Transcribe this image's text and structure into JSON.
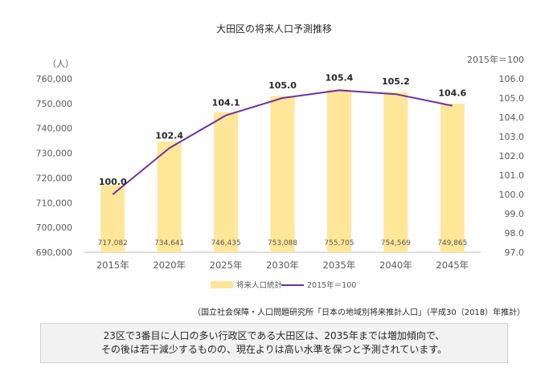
{
  "chart_data": {
    "type": "bar",
    "title": "大田区の将来人口予測推移",
    "categories": [
      "2015年",
      "2020年",
      "2025年",
      "2030年",
      "2035年",
      "2040年",
      "2045年"
    ],
    "series": [
      {
        "name": "将来人口統計",
        "type": "bar",
        "axis": "left",
        "color": "#FFE699",
        "values": [
          717082,
          734641,
          746435,
          753088,
          755705,
          754569,
          749865
        ],
        "labels": [
          "717,082",
          "734,641",
          "746,435",
          "753,088",
          "755,705",
          "754,569",
          "749,865"
        ]
      },
      {
        "name": "2015年＝100",
        "type": "line",
        "axis": "right",
        "color": "#7030A0",
        "values": [
          100.0,
          102.4,
          104.1,
          105.0,
          105.4,
          105.2,
          104.6
        ],
        "labels": [
          "100.0",
          "102.4",
          "104.1",
          "105.0",
          "105.4",
          "105.2",
          "104.6"
        ]
      }
    ],
    "y_left": {
      "unit": "（人）",
      "min": 690000,
      "max": 760000,
      "ticks": [
        "690,000",
        "700,000",
        "710,000",
        "720,000",
        "730,000",
        "740,000",
        "750,000",
        "760,000"
      ]
    },
    "y_right": {
      "unit": "2015年＝100",
      "min": 97.0,
      "max": 106.0,
      "ticks": [
        "97.0",
        "98.0",
        "99.0",
        "100.0",
        "101.0",
        "102.0",
        "103.0",
        "104.0",
        "105.0",
        "106.0"
      ]
    },
    "legend": {
      "position": "bottom",
      "items": [
        "将来人口統計",
        "2015年＝100"
      ]
    },
    "grid": false
  },
  "source_note": "（国立社会保障・人口問題研究所「日本の地域別将来推計人口」（平成30（2018）年推計）",
  "summary": {
    "line1": "23区で3番目に人口の多い行政区である大田区は、2035年までは増加傾向で、",
    "line2": "その後は若干減少するものの、現在よりは高い水準を保つと予測されています。"
  }
}
